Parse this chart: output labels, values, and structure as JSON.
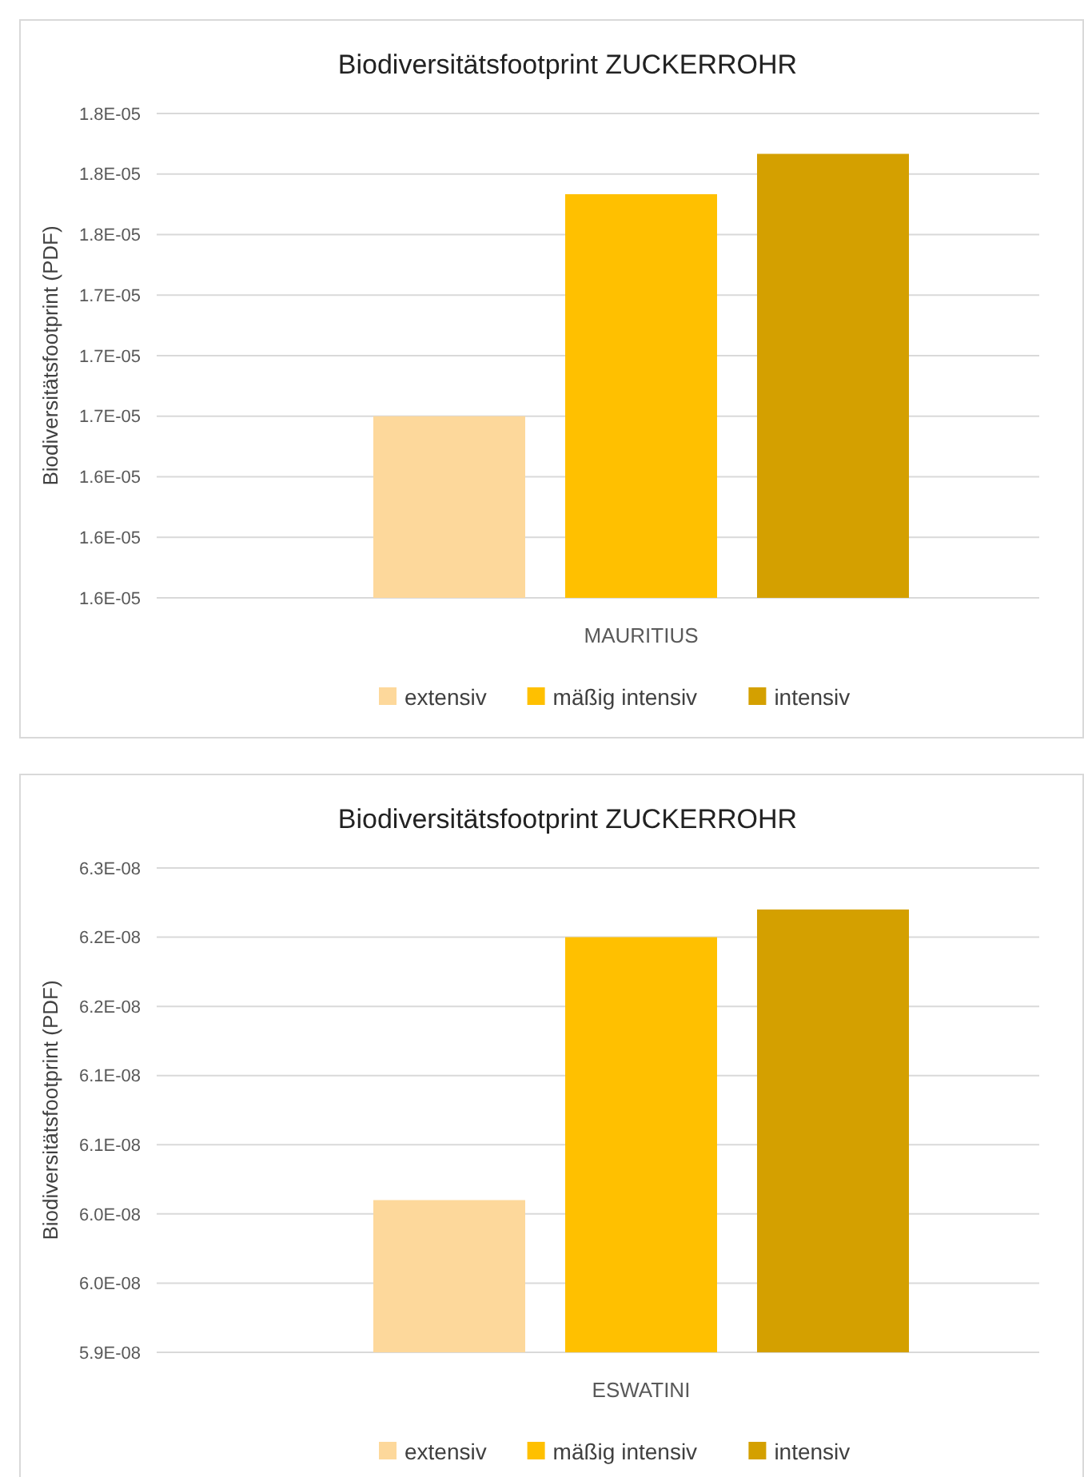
{
  "chart_data": [
    {
      "type": "bar",
      "title": "Biodiversitätsfootprint ZUCKERROHR",
      "ylabel": "Biodiversitätsfootprint (PDF)",
      "categories": [
        "MAURITIUS"
      ],
      "series": [
        {
          "name": "extensiv",
          "color": "#fdd89b",
          "values": [
            1.67e-05
          ]
        },
        {
          "name": "mäßig intensiv",
          "color": "#ffc000",
          "values": [
            1.78e-05
          ]
        },
        {
          "name": "intensiv",
          "color": "#d4a000",
          "values": [
            1.8e-05
          ]
        }
      ],
      "ylim": [
        1.58e-05,
        1.82e-05
      ],
      "yticks": [
        {
          "value": 1.58e-05,
          "label": "1.6E-05"
        },
        {
          "value": 1.61e-05,
          "label": "1.6E-05"
        },
        {
          "value": 1.64e-05,
          "label": "1.6E-05"
        },
        {
          "value": 1.67e-05,
          "label": "1.7E-05"
        },
        {
          "value": 1.7e-05,
          "label": "1.7E-05"
        },
        {
          "value": 1.73e-05,
          "label": "1.7E-05"
        },
        {
          "value": 1.76e-05,
          "label": "1.8E-05"
        },
        {
          "value": 1.79e-05,
          "label": "1.8E-05"
        },
        {
          "value": 1.82e-05,
          "label": "1.8E-05"
        }
      ],
      "grid": "y",
      "legend": "bottom"
    },
    {
      "type": "bar",
      "title": "Biodiversitätsfootprint ZUCKERROHR",
      "ylabel": "Biodiversitätsfootprint (PDF)",
      "categories": [
        "ESWATINI"
      ],
      "series": [
        {
          "name": "extensiv",
          "color": "#fdd89b",
          "values": [
            6.01e-08
          ]
        },
        {
          "name": "mäßig intensiv",
          "color": "#ffc000",
          "values": [
            6.2e-08
          ]
        },
        {
          "name": "intensiv",
          "color": "#d4a000",
          "values": [
            6.22e-08
          ]
        }
      ],
      "ylim": [
        5.9e-08,
        6.25e-08
      ],
      "yticks": [
        {
          "value": 5.9e-08,
          "label": "5.9E-08"
        },
        {
          "value": 5.95e-08,
          "label": "6.0E-08"
        },
        {
          "value": 6e-08,
          "label": "6.0E-08"
        },
        {
          "value": 6.05e-08,
          "label": "6.1E-08"
        },
        {
          "value": 6.1e-08,
          "label": "6.1E-08"
        },
        {
          "value": 6.15e-08,
          "label": "6.2E-08"
        },
        {
          "value": 6.2e-08,
          "label": "6.2E-08"
        },
        {
          "value": 6.25e-08,
          "label": "6.3E-08"
        }
      ],
      "grid": "y",
      "legend": "bottom"
    }
  ]
}
